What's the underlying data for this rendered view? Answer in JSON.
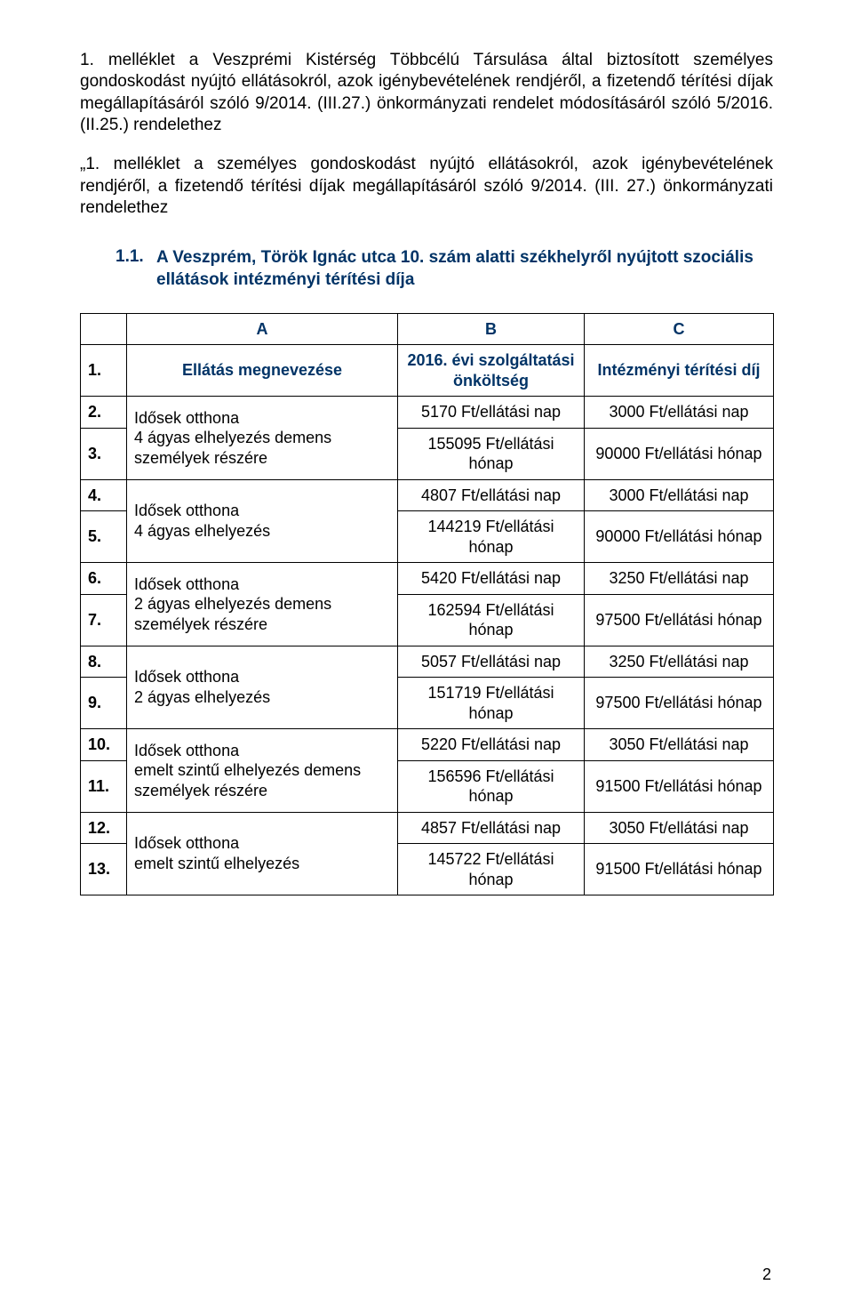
{
  "colors": {
    "heading": "#003366",
    "text": "#000000",
    "border": "#000000",
    "background": "#ffffff"
  },
  "typography": {
    "body_fontsize_pt": 14,
    "heading_fontsize_pt": 14,
    "heading_fontweight": "bold",
    "font_family": "Tahoma / Segoe UI"
  },
  "para1": "1. melléklet a Veszprémi Kistérség Többcélú Társulása által biztosított személyes gondoskodást nyújtó ellátásokról, azok igénybevételének rendjéről, a fizetendő térítési díjak megállapításáról szóló 9/2014. (III.27.) önkormányzati rendelet módosításáról szóló 5/2016.(II.25.) rendelethez",
  "para2": "„1. melléklet a személyes gondoskodást nyújtó ellátásokról, azok igénybevételének rendjéről, a fizetendő térítési díjak megállapításáról szóló 9/2014. (III. 27.) önkormányzati rendelethez",
  "section_num": "1.1.",
  "section_title": "A Veszprém, Török Ignác utca 10. szám alatti székhelyről nyújtott szociális ellátások intézményi térítési díja",
  "table": {
    "columns": {
      "a": "A",
      "b": "B",
      "c": "C",
      "name": "Ellátás megnevezése",
      "col_b_head": "2016. évi szolgáltatási önköltség",
      "col_c_head": "Intézményi térítési díj"
    },
    "groups": [
      {
        "name_lines": [
          "Idősek otthona",
          "4 ágyas elhelyezés demens személyek részére"
        ],
        "rows": [
          {
            "num": "2.",
            "b": "5170 Ft/ellátási nap",
            "c": "3000 Ft/ellátási nap"
          },
          {
            "num": "3.",
            "b": "155095 Ft/ellátási hónap",
            "c": "90000 Ft/ellátási hónap"
          }
        ]
      },
      {
        "name_lines": [
          "Idősek otthona",
          "4 ágyas elhelyezés"
        ],
        "rows": [
          {
            "num": "4.",
            "b": "4807 Ft/ellátási nap",
            "c": "3000 Ft/ellátási nap"
          },
          {
            "num": "5.",
            "b": "144219 Ft/ellátási hónap",
            "c": "90000 Ft/ellátási hónap"
          }
        ]
      },
      {
        "name_lines": [
          "Idősek otthona",
          "2 ágyas elhelyezés demens személyek részére"
        ],
        "rows": [
          {
            "num": "6.",
            "b": "5420 Ft/ellátási nap",
            "c": "3250 Ft/ellátási nap"
          },
          {
            "num": "7.",
            "b": "162594 Ft/ellátási hónap",
            "c": "97500 Ft/ellátási hónap"
          }
        ]
      },
      {
        "name_lines": [
          "Idősek otthona",
          "2 ágyas elhelyezés"
        ],
        "rows": [
          {
            "num": "8.",
            "b": "5057 Ft/ellátási nap",
            "c": "3250 Ft/ellátási nap"
          },
          {
            "num": "9.",
            "b": "151719 Ft/ellátási hónap",
            "c": "97500 Ft/ellátási hónap"
          }
        ]
      },
      {
        "name_lines": [
          "Idősek otthona",
          "emelt szintű elhelyezés demens személyek részére"
        ],
        "rows": [
          {
            "num": "10.",
            "b": "5220 Ft/ellátási nap",
            "c": "3050 Ft/ellátási nap"
          },
          {
            "num": "11.",
            "b": "156596 Ft/ellátási hónap",
            "c": "91500 Ft/ellátási hónap"
          }
        ]
      },
      {
        "name_lines": [
          "Idősek otthona",
          "emelt szintű elhelyezés"
        ],
        "rows": [
          {
            "num": "12.",
            "b": "4857 Ft/ellátási nap",
            "c": "3050 Ft/ellátási nap"
          },
          {
            "num": "13.",
            "b": "145722 Ft/ellátási hónap",
            "c": "91500 Ft/ellátási hónap"
          }
        ]
      }
    ]
  },
  "header_row_num": "1.",
  "page_number": "2"
}
